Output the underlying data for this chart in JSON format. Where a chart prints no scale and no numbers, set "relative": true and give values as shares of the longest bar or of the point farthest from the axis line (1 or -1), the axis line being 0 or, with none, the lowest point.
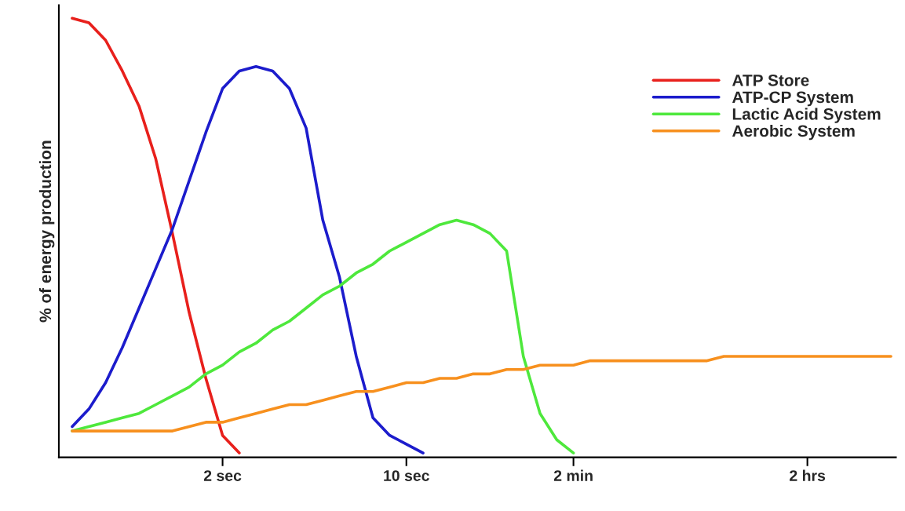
{
  "chart_data": {
    "type": "line",
    "ylabel": "% of energy production",
    "relative": true,
    "categories": [
      null,
      null,
      null,
      null,
      null,
      null,
      null,
      null,
      null,
      "2 sec",
      null,
      null,
      null,
      null,
      null,
      null,
      null,
      null,
      null,
      null,
      "10 sec",
      null,
      null,
      null,
      null,
      null,
      null,
      null,
      null,
      null,
      "2 min",
      null,
      null,
      null,
      null,
      null,
      null,
      null,
      null,
      null,
      null,
      null,
      null,
      null,
      "2 hrs",
      null,
      null,
      null,
      null,
      null
    ],
    "grid": false,
    "legend": "top right",
    "marker": "none",
    "line_style": "solid",
    "series": [
      {
        "name": "ATP Store",
        "color": "#e8201c",
        "values": [
          1.0,
          0.99,
          0.95,
          0.88,
          0.8,
          0.68,
          0.51,
          0.33,
          0.18,
          0.05,
          0.01,
          null,
          null,
          null,
          null,
          null,
          null,
          null,
          null,
          null,
          null,
          null,
          null,
          null,
          null,
          null,
          null,
          null,
          null,
          null,
          null,
          null,
          null,
          null,
          null,
          null,
          null,
          null,
          null,
          null,
          null,
          null,
          null,
          null,
          null,
          null,
          null,
          null,
          null,
          null
        ]
      },
      {
        "name": "ATP-CP System",
        "color": "#1c1ccc",
        "values": [
          0.07,
          0.11,
          0.17,
          0.25,
          0.34,
          0.43,
          0.52,
          0.63,
          0.74,
          0.84,
          0.88,
          0.89,
          0.88,
          0.84,
          0.75,
          0.54,
          0.41,
          0.23,
          0.09,
          0.05,
          0.03,
          0.01,
          null,
          null,
          null,
          null,
          null,
          null,
          null,
          null,
          null,
          null,
          null,
          null,
          null,
          null,
          null,
          null,
          null,
          null,
          null,
          null,
          null,
          null,
          null,
          null,
          null,
          null,
          null,
          null
        ]
      },
      {
        "name": "Lactic Acid System",
        "color": "#4ee83c",
        "values": [
          0.06,
          0.07,
          0.08,
          0.09,
          0.1,
          0.12,
          0.14,
          0.16,
          0.19,
          0.21,
          0.24,
          0.26,
          0.29,
          0.31,
          0.34,
          0.37,
          0.39,
          0.42,
          0.44,
          0.47,
          0.49,
          0.51,
          0.53,
          0.54,
          0.53,
          0.51,
          0.47,
          0.23,
          0.1,
          0.04,
          0.01,
          null,
          null,
          null,
          null,
          null,
          null,
          null,
          null,
          null,
          null,
          null,
          null,
          null,
          null,
          null,
          null,
          null,
          null,
          null
        ]
      },
      {
        "name": "Aerobic System",
        "color": "#f7901e",
        "values": [
          0.06,
          0.06,
          0.06,
          0.06,
          0.06,
          0.06,
          0.06,
          0.07,
          0.08,
          0.08,
          0.09,
          0.1,
          0.11,
          0.12,
          0.12,
          0.13,
          0.14,
          0.15,
          0.15,
          0.16,
          0.17,
          0.17,
          0.18,
          0.18,
          0.19,
          0.19,
          0.2,
          0.2,
          0.21,
          0.21,
          0.21,
          0.22,
          0.22,
          0.22,
          0.22,
          0.22,
          0.22,
          0.22,
          0.22,
          0.23,
          0.23,
          0.23,
          0.23,
          0.23,
          0.23,
          0.23,
          0.23,
          0.23,
          0.23,
          0.23
        ]
      }
    ]
  }
}
